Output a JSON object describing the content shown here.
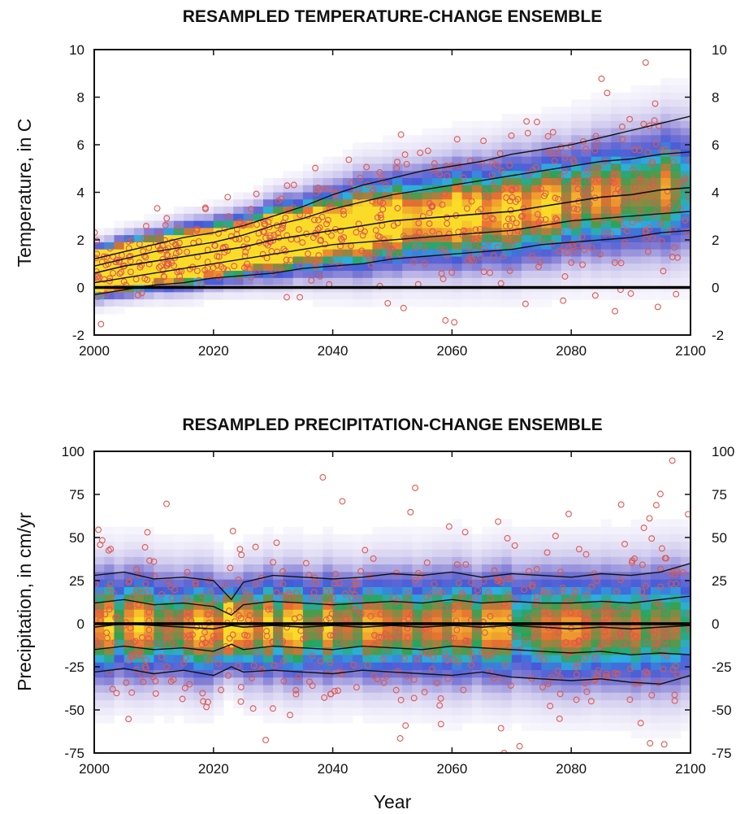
{
  "chart_data": [
    {
      "type": "scatter",
      "title": "RESAMPLED TEMPERATURE-CHANGE ENSEMBLE",
      "xlabel": "",
      "ylabel": "Temperature, in C",
      "xlim": [
        2000,
        2100
      ],
      "ylim": [
        -2,
        10
      ],
      "xticks": [
        "2000",
        "2020",
        "2040",
        "2060",
        "2080",
        "2100"
      ],
      "yticks_left": [
        "10",
        "8",
        "6",
        "4",
        "2",
        "0",
        "-2"
      ],
      "yticks_right": [
        "10",
        "8",
        "6",
        "4",
        "2",
        "0",
        "-2"
      ],
      "zero_line": 0,
      "x": [
        2000,
        2005,
        2010,
        2015,
        2020,
        2025,
        2030,
        2035,
        2040,
        2045,
        2050,
        2055,
        2060,
        2065,
        2070,
        2075,
        2080,
        2085,
        2090,
        2095,
        2100
      ],
      "series": [
        {
          "values": [
            1.2,
            1.5,
            1.8,
            2.1,
            2.3,
            2.6,
            3.0,
            3.4,
            3.9,
            4.3,
            4.6,
            4.9,
            5.1,
            5.3,
            5.6,
            5.8,
            6.0,
            6.3,
            6.6,
            6.9,
            7.2
          ]
        },
        {
          "values": [
            0.9,
            1.2,
            1.5,
            1.7,
            1.9,
            2.2,
            2.6,
            2.9,
            3.3,
            3.6,
            3.9,
            4.1,
            4.3,
            4.5,
            4.7,
            4.9,
            5.1,
            5.3,
            5.4,
            5.6,
            5.7
          ]
        },
        {
          "values": [
            0.6,
            0.9,
            1.1,
            1.3,
            1.5,
            1.7,
            2.0,
            2.2,
            2.4,
            2.6,
            2.8,
            2.9,
            3.0,
            3.1,
            3.2,
            3.4,
            3.6,
            3.8,
            3.9,
            4.1,
            4.2
          ]
        },
        {
          "values": [
            0.2,
            0.4,
            0.6,
            0.8,
            1.0,
            1.2,
            1.4,
            1.6,
            1.8,
            1.9,
            2.0,
            2.1,
            2.2,
            2.3,
            2.4,
            2.6,
            2.8,
            2.9,
            3.0,
            3.1,
            3.2
          ]
        },
        {
          "values": [
            -0.3,
            -0.1,
            0.1,
            0.2,
            0.4,
            0.5,
            0.6,
            0.8,
            0.9,
            1.0,
            1.2,
            1.3,
            1.4,
            1.5,
            1.6,
            1.8,
            1.9,
            2.0,
            2.1,
            2.3,
            2.4
          ]
        }
      ]
    },
    {
      "type": "scatter",
      "title": "RESAMPLED PRECIPITATION-CHANGE ENSEMBLE",
      "xlabel": "Year",
      "ylabel": "Precipitation, in cm/yr",
      "xlim": [
        2000,
        2100
      ],
      "ylim": [
        -75,
        100
      ],
      "xticks": [
        "2000",
        "2020",
        "2040",
        "2060",
        "2080",
        "2100"
      ],
      "yticks_left": [
        "100",
        "75",
        "50",
        "25",
        "0",
        "-25",
        "-50",
        "-75"
      ],
      "yticks_right": [
        "100",
        "75",
        "50",
        "25",
        "0",
        "-25",
        "-50",
        "-75"
      ],
      "zero_line": 0,
      "x": [
        2000,
        2005,
        2010,
        2015,
        2020,
        2023,
        2025,
        2030,
        2035,
        2040,
        2045,
        2050,
        2055,
        2060,
        2065,
        2070,
        2075,
        2080,
        2085,
        2090,
        2095,
        2100
      ],
      "series": [
        {
          "values": [
            28,
            30,
            26,
            27,
            25,
            14,
            24,
            28,
            27,
            26,
            27,
            29,
            28,
            30,
            27,
            29,
            28,
            27,
            29,
            28,
            30,
            35
          ]
        },
        {
          "values": [
            12,
            14,
            11,
            12,
            10,
            5,
            11,
            13,
            12,
            11,
            12,
            13,
            12,
            14,
            12,
            13,
            12,
            12,
            13,
            12,
            14,
            16
          ]
        },
        {
          "values": [
            -2,
            0,
            -1,
            -2,
            -3,
            -1,
            -2,
            -1,
            -2,
            -1,
            -2,
            -1,
            -2,
            -1,
            -2,
            -1,
            -2,
            -3,
            -2,
            -3,
            -2,
            -1
          ]
        },
        {
          "values": [
            -15,
            -13,
            -15,
            -14,
            -16,
            -12,
            -15,
            -13,
            -14,
            -15,
            -13,
            -14,
            -15,
            -13,
            -14,
            -15,
            -16,
            -17,
            -16,
            -18,
            -17,
            -18
          ]
        },
        {
          "values": [
            -28,
            -26,
            -29,
            -27,
            -30,
            -25,
            -28,
            -27,
            -28,
            -29,
            -27,
            -28,
            -29,
            -30,
            -28,
            -31,
            -32,
            -33,
            -32,
            -34,
            -35,
            -30
          ]
        }
      ]
    }
  ]
}
